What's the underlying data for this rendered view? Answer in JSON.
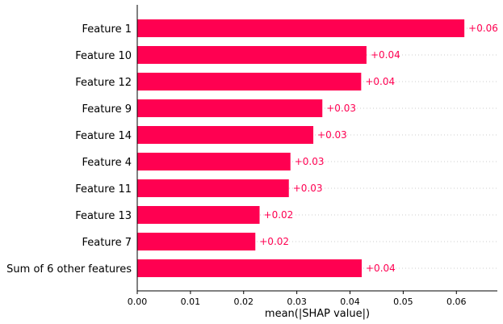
{
  "chart_data": {
    "type": "bar",
    "orientation": "horizontal",
    "categories": [
      "Feature 1",
      "Feature 10",
      "Feature 12",
      "Feature 9",
      "Feature 14",
      "Feature 4",
      "Feature 11",
      "Feature 13",
      "Feature 7",
      "Sum of 6 other features"
    ],
    "values": [
      0.0615,
      0.0431,
      0.0421,
      0.0348,
      0.0331,
      0.0288,
      0.0285,
      0.023,
      0.0222,
      0.0422
    ],
    "value_labels": [
      "+0.06",
      "+0.04",
      "+0.04",
      "+0.03",
      "+0.03",
      "+0.03",
      "+0.03",
      "+0.02",
      "+0.02",
      "+0.04"
    ],
    "xlabel": "mean(|SHAP value|)",
    "ylabel": "",
    "xlim": [
      0,
      0.0677
    ],
    "xticks": [
      0.0,
      0.01,
      0.02,
      0.03,
      0.04,
      0.05,
      0.06
    ],
    "xtick_labels": [
      "0.00",
      "0.01",
      "0.02",
      "0.03",
      "0.04",
      "0.05",
      "0.06"
    ],
    "bar_color": "#ff0051",
    "label_color": "#ff0051",
    "grid": "dotted row guides",
    "grid_color": "#cccccc"
  }
}
